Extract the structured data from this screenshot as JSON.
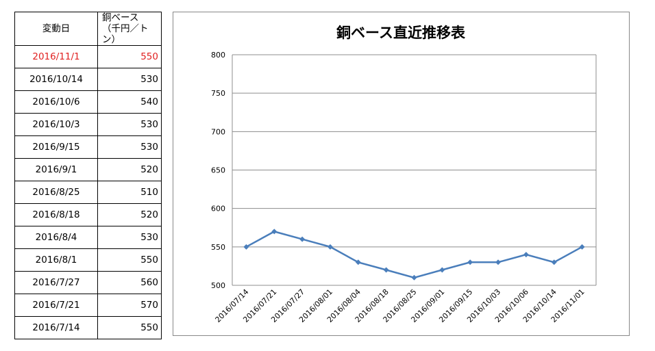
{
  "table": {
    "header": {
      "date": "変動日",
      "price_line1": "銅ベース",
      "price_line2": "（千円／トン）"
    },
    "rows": [
      {
        "date": "2016/11/1",
        "value": "550"
      },
      {
        "date": "2016/10/14",
        "value": "530"
      },
      {
        "date": "2016/10/6",
        "value": "540"
      },
      {
        "date": "2016/10/3",
        "value": "530"
      },
      {
        "date": "2016/9/15",
        "value": "530"
      },
      {
        "date": "2016/9/1",
        "value": "520"
      },
      {
        "date": "2016/8/25",
        "value": "510"
      },
      {
        "date": "2016/8/18",
        "value": "520"
      },
      {
        "date": "2016/8/4",
        "value": "530"
      },
      {
        "date": "2016/8/1",
        "value": "550"
      },
      {
        "date": "2016/7/27",
        "value": "560"
      },
      {
        "date": "2016/7/21",
        "value": "570"
      },
      {
        "date": "2016/7/14",
        "value": "550"
      }
    ],
    "highlight_color": "#e02020"
  },
  "chart_data": {
    "type": "line",
    "title": "銅ベース直近推移表",
    "xlabel": "",
    "ylabel": "",
    "categories": [
      "2016/07/14",
      "2016/07/21",
      "2016/07/27",
      "2016/08/01",
      "2016/08/04",
      "2016/08/18",
      "2016/08/25",
      "2016/09/01",
      "2016/09/15",
      "2016/10/03",
      "2016/10/06",
      "2016/10/14",
      "2016/11/01"
    ],
    "values": [
      550,
      570,
      560,
      550,
      530,
      520,
      510,
      520,
      530,
      530,
      540,
      530,
      550
    ],
    "ylim": [
      500,
      800
    ],
    "yticks": [
      500,
      550,
      600,
      650,
      700,
      750,
      800
    ],
    "grid": true,
    "legend": "none",
    "line_color": "#4a7ebb",
    "marker": "diamond"
  }
}
